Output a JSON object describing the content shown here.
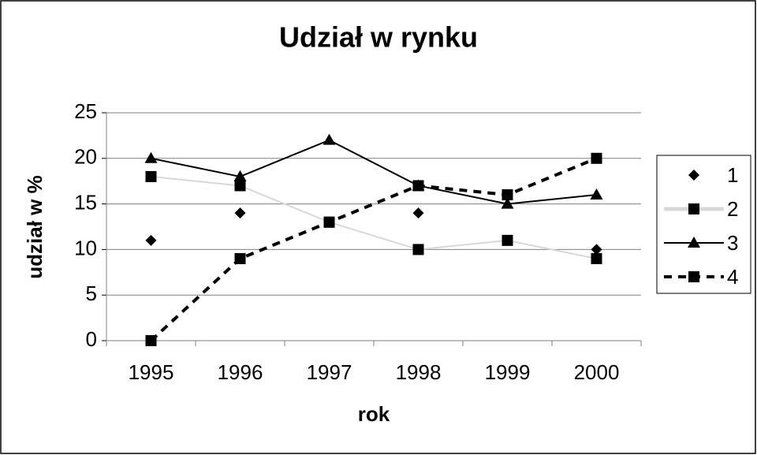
{
  "chart_data": {
    "type": "line",
    "title": "Udział w rynku",
    "x_label": "rok",
    "y_label": "udział w %",
    "categories": [
      "1995",
      "1996",
      "1997",
      "1998",
      "1999",
      "2000"
    ],
    "series": [
      {
        "name": "1",
        "color": "#000000",
        "marker": "diamond",
        "line_style": "none",
        "values": [
          11,
          14,
          null,
          14,
          null,
          10
        ]
      },
      {
        "name": "2",
        "color": "#000000",
        "line_color": "#d8d8d8",
        "marker": "square",
        "line_style": "solid",
        "values": [
          18,
          17,
          13,
          10,
          11,
          9
        ]
      },
      {
        "name": "3",
        "color": "#000000",
        "marker": "triangle",
        "line_style": "solid",
        "values": [
          20,
          18,
          22,
          17,
          15,
          16
        ]
      },
      {
        "name": "4",
        "color": "#000000",
        "marker": "square",
        "line_style": "dashed",
        "values": [
          0,
          9,
          13,
          17,
          16,
          20
        ]
      }
    ],
    "ylim": [
      0,
      25
    ],
    "yticks": [
      0,
      5,
      10,
      15,
      20,
      25
    ],
    "grid": true,
    "legend": "right"
  }
}
